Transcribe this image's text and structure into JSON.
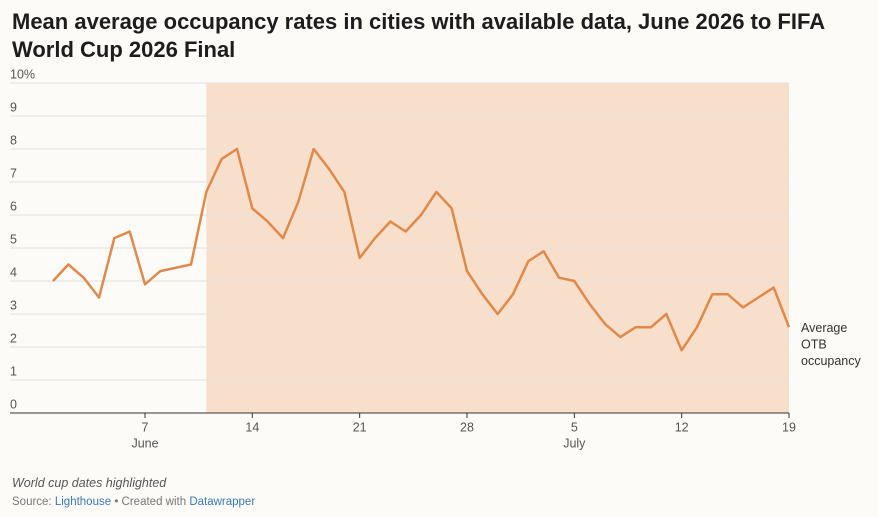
{
  "chart_data": {
    "type": "line",
    "title": "Mean average occupancy rates in cities with available data, June 2026 to FIFA World Cup 2026 Final",
    "x": [
      "2026-06-01",
      "2026-06-02",
      "2026-06-03",
      "2026-06-04",
      "2026-06-05",
      "2026-06-06",
      "2026-06-07",
      "2026-06-08",
      "2026-06-09",
      "2026-06-10",
      "2026-06-11",
      "2026-06-12",
      "2026-06-13",
      "2026-06-14",
      "2026-06-15",
      "2026-06-16",
      "2026-06-17",
      "2026-06-18",
      "2026-06-19",
      "2026-06-20",
      "2026-06-21",
      "2026-06-22",
      "2026-06-23",
      "2026-06-24",
      "2026-06-25",
      "2026-06-26",
      "2026-06-27",
      "2026-06-28",
      "2026-06-29",
      "2026-06-30",
      "2026-07-01",
      "2026-07-02",
      "2026-07-03",
      "2026-07-04",
      "2026-07-05",
      "2026-07-06",
      "2026-07-07",
      "2026-07-08",
      "2026-07-09",
      "2026-07-10",
      "2026-07-11",
      "2026-07-12",
      "2026-07-13",
      "2026-07-14",
      "2026-07-15",
      "2026-07-16",
      "2026-07-17",
      "2026-07-18",
      "2026-07-19"
    ],
    "series": [
      {
        "name": "Average OTB occupancy",
        "color": "#e0894a",
        "values": [
          4.0,
          4.5,
          4.1,
          3.5,
          5.3,
          5.5,
          3.9,
          4.3,
          4.4,
          4.5,
          6.7,
          7.7,
          8.0,
          6.2,
          5.8,
          5.3,
          6.4,
          8.0,
          7.4,
          6.7,
          4.7,
          5.3,
          5.8,
          5.5,
          6.0,
          6.7,
          6.2,
          4.3,
          3.6,
          3.0,
          3.6,
          4.6,
          4.9,
          4.1,
          4.0,
          3.3,
          2.7,
          2.3,
          2.6,
          2.6,
          3.0,
          1.9,
          2.6,
          3.6,
          3.6,
          3.2,
          3.5,
          3.8,
          2.6
        ]
      }
    ],
    "xlim": [
      "2026-06-01",
      "2026-07-19"
    ],
    "xticks": [
      {
        "value": "2026-06-07",
        "label": "7"
      },
      {
        "value": "2026-06-14",
        "label": "14"
      },
      {
        "value": "2026-06-21",
        "label": "21"
      },
      {
        "value": "2026-06-28",
        "label": "28"
      },
      {
        "value": "2026-07-05",
        "label": "5"
      },
      {
        "value": "2026-07-12",
        "label": "12"
      },
      {
        "value": "2026-07-19",
        "label": "19"
      }
    ],
    "month_labels": [
      {
        "value": "2026-06-07",
        "label": "June"
      },
      {
        "value": "2026-07-05",
        "label": "July"
      }
    ],
    "highlight": {
      "from": "2026-06-11",
      "to": "2026-07-19",
      "color": "#f8dfcc"
    },
    "ylim": [
      0,
      10
    ],
    "yticks": [
      0,
      1,
      2,
      3,
      4,
      5,
      6,
      7,
      8,
      9,
      {
        "value": 10,
        "label": "10%"
      }
    ],
    "grid": true,
    "note": "World cup dates highlighted",
    "source_label": "Source:",
    "source": "Lighthouse",
    "credit": "• Created with",
    "credit_link": "Datawrapper"
  }
}
